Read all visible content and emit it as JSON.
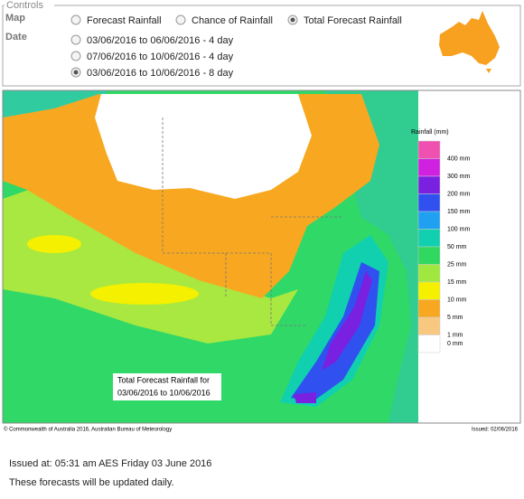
{
  "controls": {
    "title": "Controls",
    "map_label": "Map",
    "date_label": "Date",
    "map_options": [
      {
        "label": "Forecast Rainfall",
        "selected": false
      },
      {
        "label": "Chance of Rainfall",
        "selected": false
      },
      {
        "label": "Total Forecast Rainfall",
        "selected": true
      }
    ],
    "date_options": [
      {
        "label": "03/06/2016 to 06/06/2016 - 4 day",
        "selected": false
      },
      {
        "label": "07/06/2016 to 10/06/2016 - 4 day",
        "selected": false
      },
      {
        "label": "03/06/2016 to 10/06/2016 - 8 day",
        "selected": true
      }
    ]
  },
  "map": {
    "legend_title": "Rainfall (mm)",
    "legend": [
      {
        "label": "400 mm",
        "color": "#f050b0"
      },
      {
        "label": "300 mm",
        "color": "#d020e0"
      },
      {
        "label": "200 mm",
        "color": "#7a20e0"
      },
      {
        "label": "150 mm",
        "color": "#3050f0"
      },
      {
        "label": "100 mm",
        "color": "#20a0f0"
      },
      {
        "label": "50 mm",
        "color": "#10d0b0"
      },
      {
        "label": "25 mm",
        "color": "#30d860"
      },
      {
        "label": "15 mm",
        "color": "#a0e840"
      },
      {
        "label": "10 mm",
        "color": "#f4f000"
      },
      {
        "label": "5 mm",
        "color": "#f8a820"
      },
      {
        "label": "1 mm",
        "color": "#f8c880"
      },
      {
        "label": "0 mm",
        "color": "#ffffff"
      }
    ],
    "caption": [
      "Total Forecast Rainfall for",
      "03/06/2016 to 10/06/2016"
    ],
    "copyright": "© Commonwealth of Australia 2016, Australian Bureau of Meteorology",
    "issued": "Issued: 02/06/2016"
  },
  "footer": {
    "issued": "Issued at: 05:31 am AES Friday 03 June 2016",
    "note": "These forecasts will be updated daily."
  }
}
